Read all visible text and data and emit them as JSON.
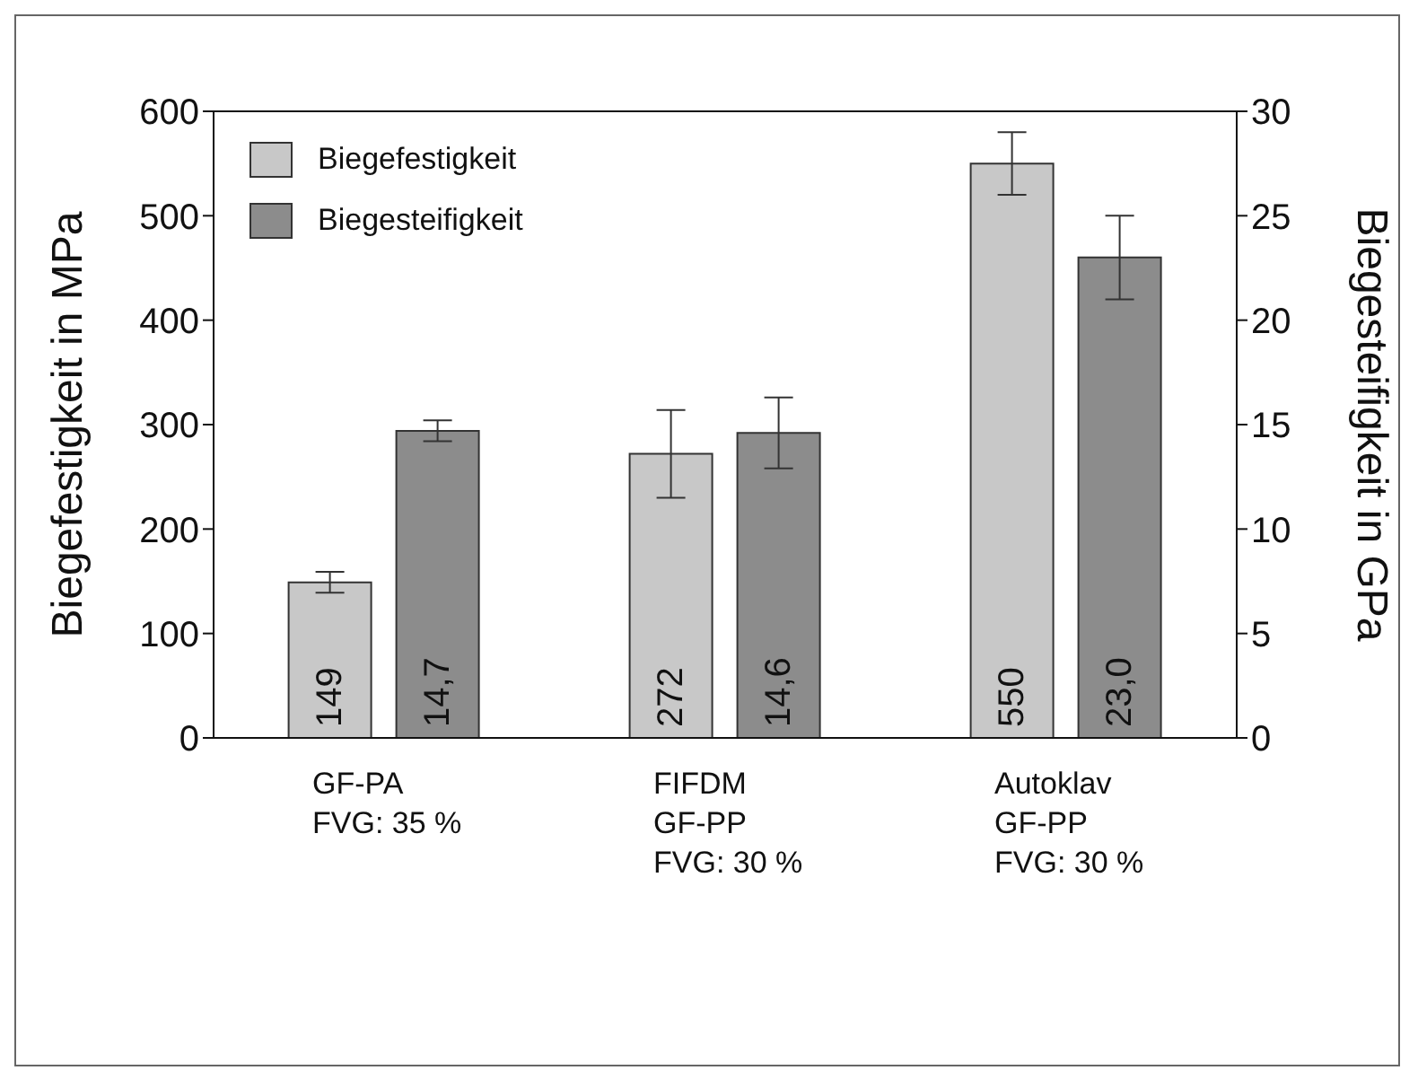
{
  "chart_data": {
    "type": "bar",
    "categories": [
      "GF-PA\nFVG: 35 %",
      "FIFDM\nGF-PP\nFVG: 30 %",
      "Autoklav\nGF-PP\nFVG: 30 %"
    ],
    "ylabel": "Biegefestigkeit in MPa",
    "y2label": "Biegesteifigkeit in GPa",
    "ylim": [
      0,
      600
    ],
    "yticks": [
      0,
      100,
      200,
      300,
      400,
      500,
      600
    ],
    "y2lim": [
      0,
      30
    ],
    "y2ticks": [
      0,
      5,
      10,
      15,
      20,
      25,
      30
    ],
    "series": [
      {
        "name": "Biegefestigkeit",
        "color": "#c8c8c8",
        "values": [
          149,
          272,
          550
        ],
        "errors": [
          10,
          42,
          30
        ],
        "value_labels": [
          "149",
          "272",
          "550"
        ]
      },
      {
        "name": "Biegesteifigkeit",
        "color": "#8c8c8c",
        "axis": "y2",
        "values": [
          14.7,
          14.6,
          23.0
        ],
        "errors": [
          0.5,
          1.7,
          2
        ],
        "value_labels": [
          "14,7",
          "14,6",
          "23,0"
        ]
      }
    ],
    "legend": "top left",
    "grid": false
  }
}
